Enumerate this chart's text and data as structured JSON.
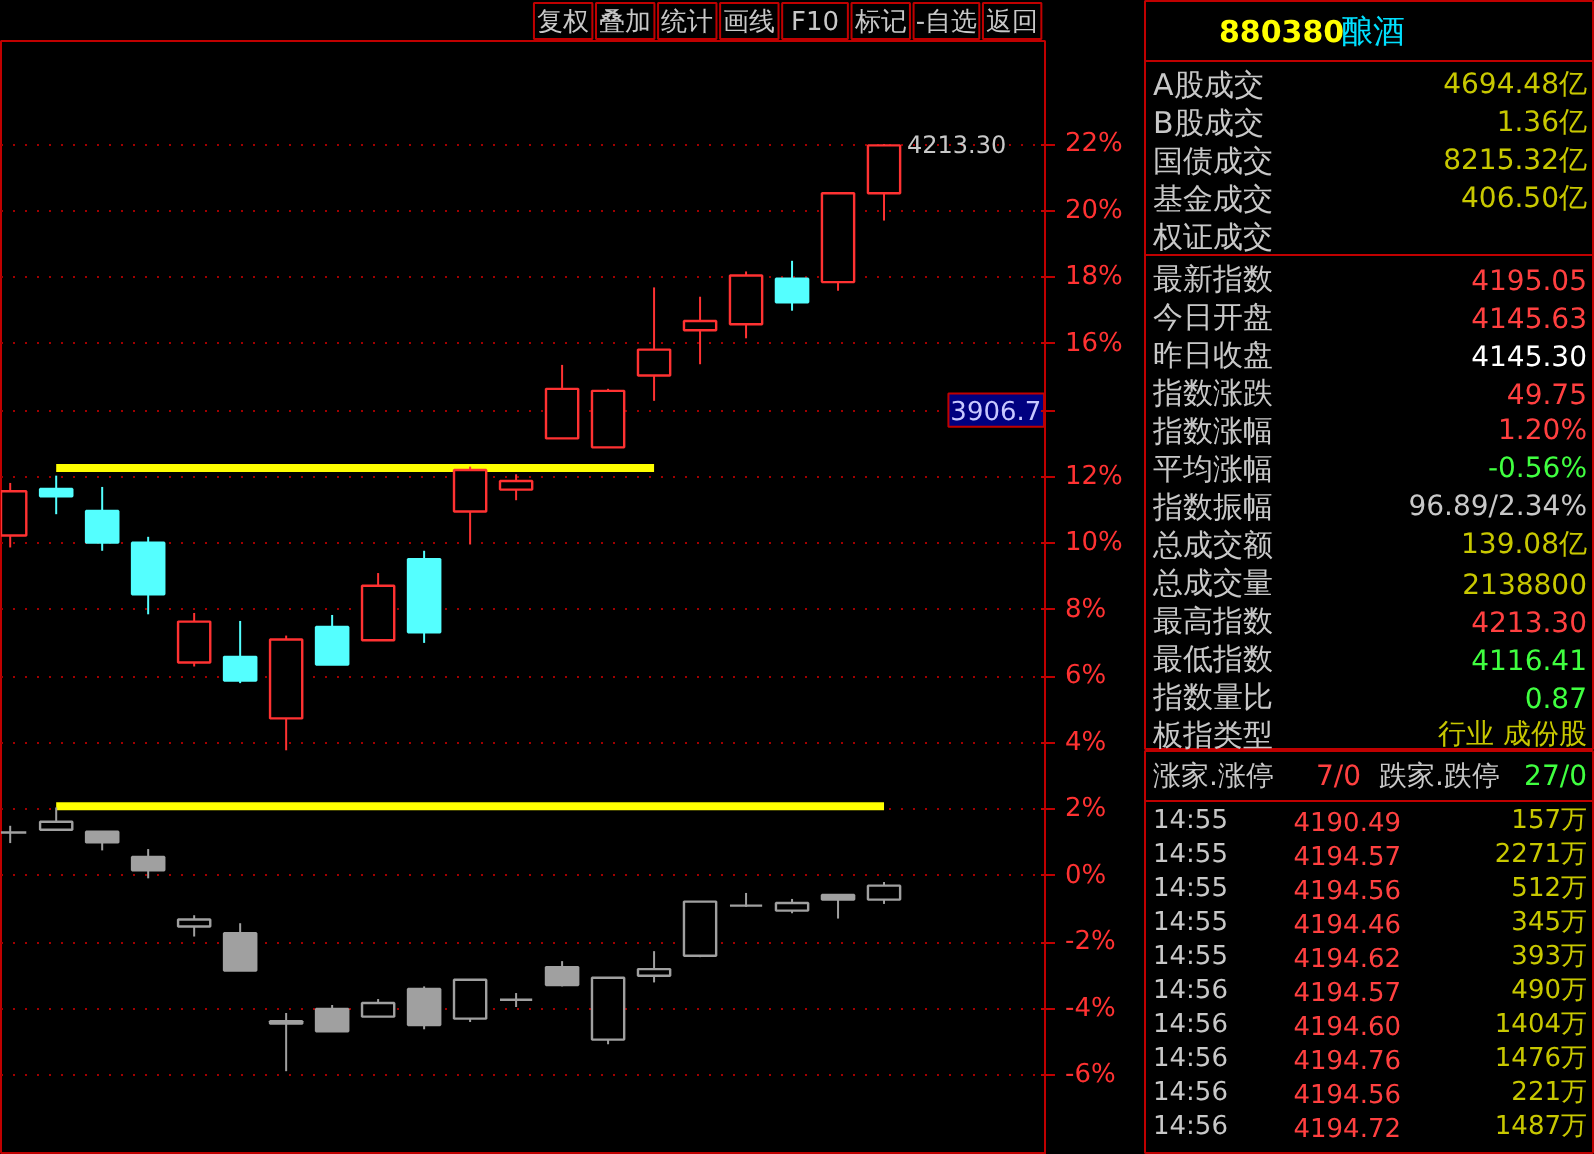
{
  "chart_data": [
    {
      "type": "candlestick",
      "categories": [
        null,
        null,
        null,
        null,
        null,
        null,
        null,
        null,
        null,
        null,
        null,
        null,
        null,
        null,
        null,
        null,
        null,
        null,
        null,
        null
      ],
      "series": [
        {
          "colors": [
            "#ff3232",
            "#54ffff",
            "#54ffff",
            "#54ffff",
            "#ff3232",
            "#54ffff",
            "#ff3232",
            "#54ffff",
            "#ff3232",
            "#54ffff",
            "#ff3232",
            "#ff3232",
            "#ff3232",
            "#ff3232",
            "#ff3232",
            "#ff3232",
            "#ff3232",
            "#54ffff",
            "#ff3232",
            "#ff3232"
          ],
          "ohlc": [
            [
              10.23,
              11.81,
              9.87,
              11.56
            ],
            [
              11.63,
              12.03,
              10.87,
              11.41
            ],
            [
              10.97,
              11.69,
              9.77,
              10.02
            ],
            [
              10.01,
              10.19,
              7.86,
              8.46
            ],
            [
              6.41,
              7.9,
              6.29,
              7.64
            ],
            [
              6.58,
              7.66,
              5.79,
              5.87
            ],
            [
              4.73,
              7.22,
              3.77,
              7.1
            ],
            [
              7.48,
              7.84,
              6.35,
              6.35
            ],
            [
              7.08,
              9.1,
              7.08,
              8.72
            ],
            [
              9.52,
              9.77,
              7.0,
              7.32
            ],
            [
              10.95,
              12.3,
              9.96,
              12.2
            ],
            [
              11.61,
              12.07,
              11.29,
              11.87
            ],
            [
              13.15,
              15.36,
              13.15,
              14.64
            ],
            [
              12.88,
              14.64,
              12.88,
              14.58
            ],
            [
              15.04,
              17.69,
              14.28,
              15.82
            ],
            [
              16.4,
              17.41,
              15.38,
              16.68
            ],
            [
              16.58,
              18.17,
              16.16,
              18.05
            ],
            [
              17.95,
              18.49,
              16.99,
              17.24
            ],
            [
              17.85,
              20.52,
              17.59,
              20.52
            ],
            [
              20.52,
              22.0,
              19.7,
              21.96
            ]
          ]
        },
        {
          "color": "#a0a0a0",
          "ohlc": [
            [
              1.3,
              1.5,
              0.98,
              1.3
            ],
            [
              1.38,
              2.05,
              1.38,
              1.62
            ],
            [
              1.32,
              1.32,
              0.76,
              1.0
            ],
            [
              0.56,
              0.8,
              -0.08,
              0.16
            ],
            [
              -1.53,
              -1.19,
              -1.83,
              -1.32
            ],
            [
              -1.73,
              -1.43,
              -2.85,
              -2.85
            ],
            [
              -4.38,
              -4.13,
              -5.88,
              -4.45
            ],
            [
              -4.01,
              -3.89,
              -4.68,
              -4.68
            ],
            [
              -4.24,
              -3.71,
              -4.24,
              -3.83
            ],
            [
              -3.41,
              -3.33,
              -4.62,
              -4.49
            ],
            [
              -4.3,
              -3.13,
              -4.4,
              -3.13
            ],
            [
              -3.73,
              -3.53,
              -3.95,
              -3.73
            ],
            [
              -2.75,
              -2.57,
              -3.33,
              -3.29
            ],
            [
              -4.93,
              -3.07,
              -5.07,
              -3.07
            ],
            [
              -3.01,
              -2.27,
              -3.21,
              -2.81
            ],
            [
              -2.41,
              -0.78,
              -2.45,
              -0.78
            ],
            [
              -0.9,
              -0.52,
              -0.94,
              -0.9
            ],
            [
              -1.05,
              -0.7,
              -1.13,
              -0.82
            ],
            [
              -0.58,
              -0.58,
              -1.29,
              -0.72
            ],
            [
              -0.72,
              -0.19,
              -0.85,
              -0.3
            ]
          ]
        },
        {
          "type": "line",
          "color": "#ffff00",
          "values": [
            null,
            12.26,
            12.26,
            12.26,
            12.26,
            12.26,
            12.26,
            12.26,
            12.26,
            12.26,
            12.26,
            12.26,
            12.26,
            12.26,
            12.26,
            null,
            null,
            null,
            null,
            null
          ]
        },
        {
          "type": "line",
          "color": "#ffff00",
          "values": [
            null,
            2.09,
            2.09,
            2.09,
            2.09,
            2.09,
            2.09,
            2.09,
            2.09,
            2.09,
            2.09,
            2.09,
            2.09,
            2.09,
            2.09,
            2.09,
            2.09,
            2.09,
            2.09,
            2.09
          ]
        }
      ],
      "ylim": [
        -8.4,
        25.1
      ],
      "yticks": [
        {
          "value": -6,
          "label": "-6%"
        },
        {
          "value": -4,
          "label": "-4%"
        },
        {
          "value": -2,
          "label": "-2%"
        },
        {
          "value": 0,
          "label": "0%"
        },
        {
          "value": 2,
          "label": "2%"
        },
        {
          "value": 4,
          "label": "4%"
        },
        {
          "value": 6,
          "label": "6%"
        },
        {
          "value": 8,
          "label": "8%"
        },
        {
          "value": 10,
          "label": "10%"
        },
        {
          "value": 12,
          "label": "12%"
        },
        {
          "value": 14,
          "label": null
        },
        {
          "value": 16,
          "label": "16%"
        },
        {
          "value": 18,
          "label": "18%"
        },
        {
          "value": 20,
          "label": "20%"
        },
        {
          "value": 22,
          "label": "22%"
        }
      ],
      "grid": "y",
      "tick_labels": "y",
      "annotations": [
        "复权",
        "叠加",
        "统计",
        "画线",
        "F10",
        "标记",
        "-自选",
        "返回",
        "4213.30",
        "3906.7"
      ]
    },
    {
      "type": "other",
      "title": "880380",
      "subtitle": "酿酒",
      "annotations": [
        "A股成交",
        "4694.48亿",
        "B股成交",
        "1.36亿",
        "国债成交",
        "8215.32亿",
        "基金成交",
        "406.50亿",
        "权证成交",
        "最新指数",
        "4195.05",
        "今日开盘",
        "4145.63",
        "昨日收盘",
        "4145.30",
        "指数涨跌",
        "49.75",
        "指数涨幅",
        "1.20%",
        "平均涨幅",
        "-0.56%",
        "指数振幅",
        "96.89/2.34%",
        "总成交额",
        "139.08亿",
        "总成交量",
        "2138800",
        "最高指数",
        "4213.30",
        "最低指数",
        "4116.41",
        "指数量比",
        "0.87",
        "板指类型",
        "行业 成份股"
      ]
    },
    {
      "type": "other",
      "annotations": [
        "涨家.涨停",
        "7/0",
        "跌家.跌停",
        "27/0",
        "14:55",
        "4190.49",
        "157万",
        "14:55",
        "4194.57",
        "2271万",
        "14:55",
        "4194.56",
        "512万",
        "14:55",
        "4194.46",
        "345万",
        "14:55",
        "4194.62",
        "393万",
        "14:56",
        "4194.57",
        "490万",
        "14:56",
        "4194.60",
        "1404万",
        "14:56",
        "4194.76",
        "1476万",
        "14:56",
        "4194.56",
        "221万",
        "14:56",
        "4194.72",
        "1487万"
      ]
    }
  ]
}
